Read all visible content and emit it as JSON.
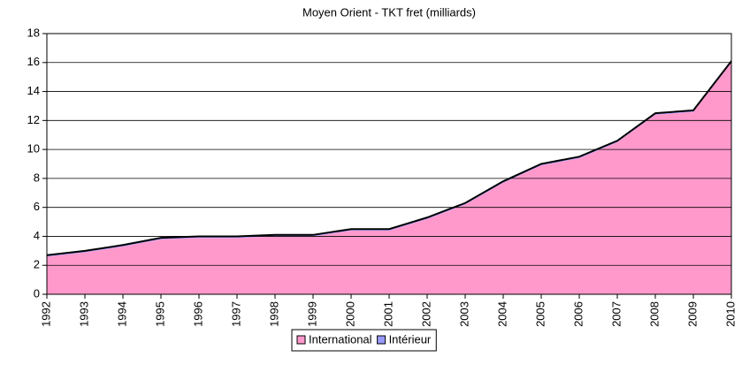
{
  "chart_data": {
    "type": "stacked_area",
    "title": "Moyen Orient - TKT fret (milliards)",
    "x": [
      1992,
      1993,
      1994,
      1995,
      1996,
      1997,
      1998,
      1999,
      2000,
      2001,
      2002,
      2003,
      2004,
      2005,
      2006,
      2007,
      2008,
      2009,
      2010
    ],
    "series": [
      {
        "name": "International",
        "color": "#ff99cc",
        "values": [
          2.6,
          2.9,
          3.3,
          3.8,
          3.9,
          3.9,
          4.0,
          4.0,
          4.4,
          4.4,
          5.2,
          6.2,
          7.7,
          8.9,
          9.4,
          10.5,
          12.4,
          12.6,
          16.0
        ]
      },
      {
        "name": "Intérieur",
        "color": "#9999ff",
        "values": [
          0.1,
          0.1,
          0.1,
          0.1,
          0.1,
          0.1,
          0.1,
          0.1,
          0.1,
          0.1,
          0.1,
          0.1,
          0.1,
          0.1,
          0.1,
          0.1,
          0.1,
          0.1,
          0.1
        ]
      }
    ],
    "ylim": [
      0,
      18
    ],
    "yticks": [
      0,
      2,
      4,
      6,
      8,
      10,
      12,
      14,
      16,
      18
    ],
    "grid": true,
    "legend": "bottom"
  }
}
